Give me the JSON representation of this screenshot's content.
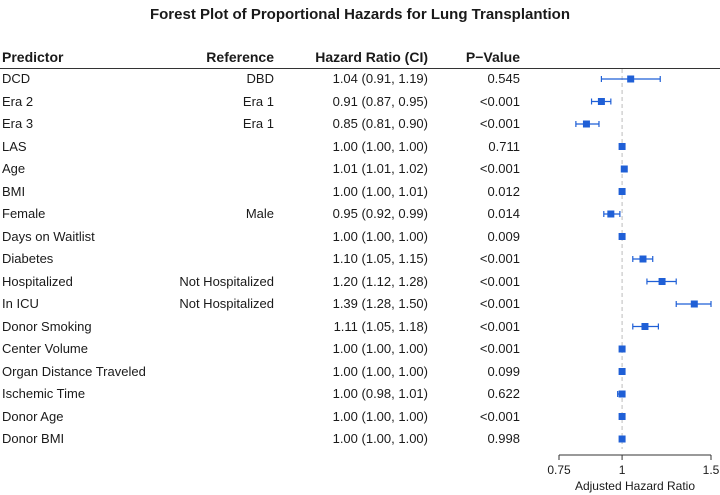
{
  "title": "Forest Plot of Proportional Hazards for Lung Transplantion",
  "headers": {
    "predictor": "Predictor",
    "reference": "Reference",
    "hazard_ratio": "Hazard Ratio (CI)",
    "p_value": "P−Value"
  },
  "colors": {
    "marker": "#1f5fd6",
    "refline": "#bdbdbd",
    "text": "#1a1a1a"
  },
  "chart_data": {
    "type": "forest",
    "title": "Forest Plot of Proportional Hazards for Lung Transplantion",
    "xlabel": "Adjusted Hazard Ratio",
    "xlim": [
      0.75,
      1.5
    ],
    "xticks": [
      0.75,
      1,
      1.5
    ],
    "xtick_labels": [
      "0.75",
      "1",
      "1.5"
    ],
    "reference_line": 1,
    "scale": "log",
    "rows": [
      {
        "predictor": "DCD",
        "reference": "DBD",
        "hr": 1.04,
        "lo": 0.91,
        "hi": 1.19,
        "hr_text": "1.04 (0.91, 1.19)",
        "p": "0.545"
      },
      {
        "predictor": "Era 2",
        "reference": "Era 1",
        "hr": 0.91,
        "lo": 0.87,
        "hi": 0.95,
        "hr_text": "0.91 (0.87, 0.95)",
        "p": "<0.001"
      },
      {
        "predictor": "Era 3",
        "reference": "Era 1",
        "hr": 0.85,
        "lo": 0.81,
        "hi": 0.9,
        "hr_text": "0.85 (0.81, 0.90)",
        "p": "<0.001"
      },
      {
        "predictor": "LAS",
        "reference": "",
        "hr": 1.0,
        "lo": 1.0,
        "hi": 1.0,
        "hr_text": "1.00 (1.00, 1.00)",
        "p": "0.711"
      },
      {
        "predictor": "Age",
        "reference": "",
        "hr": 1.01,
        "lo": 1.01,
        "hi": 1.02,
        "hr_text": "1.01 (1.01, 1.02)",
        "p": "<0.001"
      },
      {
        "predictor": "BMI",
        "reference": "",
        "hr": 1.0,
        "lo": 1.0,
        "hi": 1.01,
        "hr_text": "1.00 (1.00, 1.01)",
        "p": "0.012"
      },
      {
        "predictor": "Female",
        "reference": "Male",
        "hr": 0.95,
        "lo": 0.92,
        "hi": 0.99,
        "hr_text": "0.95 (0.92, 0.99)",
        "p": "0.014"
      },
      {
        "predictor": "Days on Waitlist",
        "reference": "",
        "hr": 1.0,
        "lo": 1.0,
        "hi": 1.0,
        "hr_text": "1.00 (1.00, 1.00)",
        "p": "0.009"
      },
      {
        "predictor": "Diabetes",
        "reference": "",
        "hr": 1.1,
        "lo": 1.05,
        "hi": 1.15,
        "hr_text": "1.10 (1.05, 1.15)",
        "p": "<0.001"
      },
      {
        "predictor": "Hospitalized",
        "reference": "Not Hospitalized",
        "hr": 1.2,
        "lo": 1.12,
        "hi": 1.28,
        "hr_text": "1.20 (1.12, 1.28)",
        "p": "<0.001"
      },
      {
        "predictor": "In ICU",
        "reference": "Not Hospitalized",
        "hr": 1.39,
        "lo": 1.28,
        "hi": 1.5,
        "hr_text": "1.39 (1.28, 1.50)",
        "p": "<0.001"
      },
      {
        "predictor": "Donor Smoking",
        "reference": "",
        "hr": 1.11,
        "lo": 1.05,
        "hi": 1.18,
        "hr_text": "1.11 (1.05, 1.18)",
        "p": "<0.001"
      },
      {
        "predictor": "Center Volume",
        "reference": "",
        "hr": 1.0,
        "lo": 1.0,
        "hi": 1.0,
        "hr_text": "1.00 (1.00, 1.00)",
        "p": "<0.001"
      },
      {
        "predictor": "Organ Distance Traveled",
        "reference": "",
        "hr": 1.0,
        "lo": 1.0,
        "hi": 1.0,
        "hr_text": "1.00 (1.00, 1.00)",
        "p": "0.099"
      },
      {
        "predictor": "Ischemic Time",
        "reference": "",
        "hr": 1.0,
        "lo": 0.98,
        "hi": 1.01,
        "hr_text": "1.00 (0.98, 1.01)",
        "p": "0.622"
      },
      {
        "predictor": "Donor Age",
        "reference": "",
        "hr": 1.0,
        "lo": 1.0,
        "hi": 1.0,
        "hr_text": "1.00 (1.00, 1.00)",
        "p": "<0.001"
      },
      {
        "predictor": "Donor BMI",
        "reference": "",
        "hr": 1.0,
        "lo": 1.0,
        "hi": 1.0,
        "hr_text": "1.00 (1.00, 1.00)",
        "p": "0.998"
      }
    ]
  }
}
